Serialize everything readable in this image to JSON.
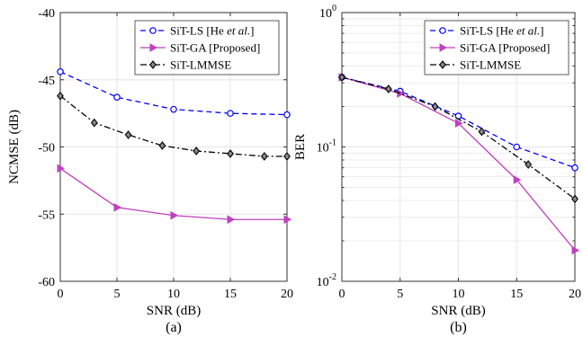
{
  "chart_data": [
    {
      "type": "line",
      "caption": "(a)",
      "xlabel": "SNR (dB)",
      "ylabel": "NCMSE (dB)",
      "xlim": [
        0,
        20
      ],
      "ylim": [
        -60,
        -40
      ],
      "xticks": [
        0,
        5,
        10,
        15,
        20
      ],
      "yticks": [
        -60,
        -55,
        -50,
        -45,
        -40
      ],
      "xtick_labels": [
        "0",
        "5",
        "10",
        "15",
        "20"
      ],
      "ytick_labels": [
        "-60",
        "-55",
        "-50",
        "-45",
        "-40"
      ],
      "grid": true,
      "legend_position": "top-right",
      "series": [
        {
          "name": "SiT-LS [He et al.]",
          "name_parts": [
            "SiT-LS [He ",
            "et al.",
            "]"
          ],
          "color": "#0000ff",
          "line_style": "dashed",
          "marker": "circle",
          "x": [
            0,
            5,
            10,
            15,
            20
          ],
          "y": [
            -44.4,
            -46.3,
            -47.2,
            -47.5,
            -47.6
          ]
        },
        {
          "name": "SiT-GA [Proposed]",
          "color": "#bf40bf",
          "line_style": "solid",
          "marker": "triangle-right",
          "x": [
            0,
            5,
            10,
            15,
            20
          ],
          "y": [
            -51.6,
            -54.5,
            -55.1,
            -55.4,
            -55.4
          ]
        },
        {
          "name": "SiT-LMMSE",
          "color": "#000000",
          "line_style": "dashdot",
          "marker": "diamond",
          "x": [
            0,
            3,
            6,
            9,
            12,
            15,
            18,
            20
          ],
          "y": [
            -46.2,
            -48.2,
            -49.1,
            -49.9,
            -50.3,
            -50.5,
            -50.7,
            -50.7
          ]
        }
      ]
    },
    {
      "type": "line",
      "caption": "(b)",
      "xlabel": "SNR (dB)",
      "ylabel": "BER",
      "xlim": [
        0,
        20
      ],
      "ylim": [
        0.01,
        1
      ],
      "yscale": "log",
      "xticks": [
        0,
        5,
        10,
        15,
        20
      ],
      "yticks": [
        0.01,
        0.1,
        1
      ],
      "xtick_labels": [
        "0",
        "5",
        "10",
        "15",
        "20"
      ],
      "ytick_labels": [
        {
          "base": "10",
          "exp": "-2"
        },
        {
          "base": "10",
          "exp": "-1"
        },
        {
          "base": "10",
          "exp": "0"
        }
      ],
      "grid": true,
      "legend_position": "top-right",
      "series": [
        {
          "name": "SiT-LS [He et al.]",
          "name_parts": [
            "SiT-LS [He ",
            "et al.",
            "]"
          ],
          "color": "#0000ff",
          "line_style": "dashed",
          "marker": "circle",
          "x": [
            0,
            5,
            10,
            15,
            20
          ],
          "y": [
            0.33,
            0.26,
            0.17,
            0.1,
            0.07
          ]
        },
        {
          "name": "SiT-GA [Proposed]",
          "color": "#bf40bf",
          "line_style": "solid",
          "marker": "triangle-right",
          "x": [
            0,
            5,
            10,
            15,
            20
          ],
          "y": [
            0.33,
            0.25,
            0.15,
            0.057,
            0.017
          ]
        },
        {
          "name": "SiT-LMMSE",
          "color": "#000000",
          "line_style": "dashdot",
          "marker": "diamond",
          "x": [
            0,
            4,
            8,
            12,
            16,
            20
          ],
          "y": [
            0.33,
            0.27,
            0.2,
            0.13,
            0.074,
            0.041
          ]
        }
      ]
    }
  ]
}
